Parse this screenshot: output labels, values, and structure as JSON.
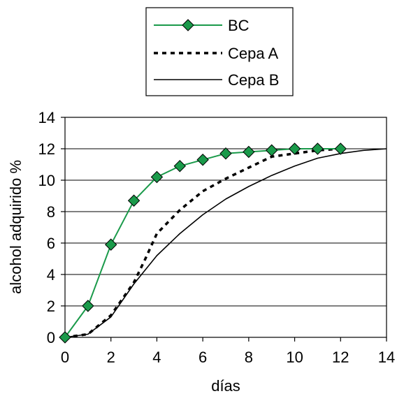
{
  "chart_data": {
    "type": "line",
    "xlabel": "días",
    "ylabel": "alcohol adquirido %",
    "xlim": [
      0,
      14
    ],
    "ylim": [
      0,
      14
    ],
    "xticks": [
      "0",
      "2",
      "4",
      "6",
      "8",
      "10",
      "12",
      "14"
    ],
    "yticks": [
      "0",
      "2",
      "4",
      "6",
      "8",
      "10",
      "12",
      "14"
    ],
    "grid": "horizontal",
    "legend_position": "top-center",
    "series": [
      {
        "name": "BC",
        "color": "#1a9a4a",
        "marker": "diamond",
        "line_style": "solid",
        "x": [
          0,
          1,
          2,
          3,
          4,
          5,
          6,
          7,
          8,
          9,
          10,
          11,
          12
        ],
        "y": [
          0,
          2.0,
          5.9,
          8.7,
          10.2,
          10.9,
          11.3,
          11.7,
          11.8,
          11.9,
          12.0,
          12.0,
          12.0
        ]
      },
      {
        "name": "Cepa A",
        "color": "#000000",
        "marker": "none",
        "line_style": "dotted",
        "x": [
          0,
          1,
          2,
          3,
          3.5,
          4,
          5,
          6,
          7,
          8,
          9,
          10,
          11,
          12
        ],
        "y": [
          0,
          0.2,
          1.4,
          3.5,
          5.0,
          6.6,
          8.1,
          9.3,
          10.1,
          10.8,
          11.5,
          11.7,
          11.9,
          12.0
        ]
      },
      {
        "name": "Cepa B",
        "color": "#000000",
        "marker": "none",
        "line_style": "solid",
        "x": [
          0,
          1,
          2,
          3,
          4,
          5,
          6,
          7,
          8,
          9,
          10,
          11,
          12,
          13,
          14
        ],
        "y": [
          0,
          0.2,
          1.3,
          3.4,
          5.2,
          6.6,
          7.8,
          8.8,
          9.6,
          10.3,
          10.9,
          11.4,
          11.7,
          11.9,
          12.0
        ]
      }
    ]
  }
}
